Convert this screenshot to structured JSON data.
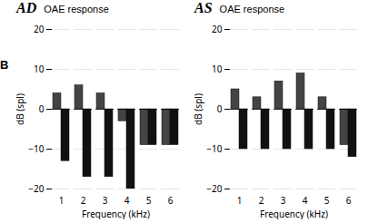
{
  "chart_data": [
    {
      "type": "bar",
      "title": "AD",
      "subtitle": "OAE response",
      "x_label": "Frequency (kHz)",
      "y_label": "dB (spl)",
      "annotations": [
        "B"
      ],
      "categories": [
        "1",
        "2",
        "3",
        "4",
        "5",
        "6"
      ],
      "series": [
        {
          "color": "#444444",
          "values": [
            4,
            6,
            4,
            -3,
            -9,
            -9
          ]
        },
        {
          "color": "#111111",
          "values": [
            -13,
            -17,
            -17,
            -20,
            -9,
            -9
          ]
        }
      ],
      "ylim": [
        -20,
        20
      ],
      "yticks": [
        -20,
        -10,
        0,
        10,
        20
      ],
      "grid": true
    },
    {
      "type": "bar",
      "title": "AS",
      "subtitle": "OAE response",
      "x_label": "Frequency (kHz)",
      "y_label": "dB (spl)",
      "categories": [
        "1",
        "2",
        "3",
        "4",
        "5",
        "6"
      ],
      "series": [
        {
          "color": "#444444",
          "values": [
            5,
            3,
            7,
            9,
            3,
            -9
          ]
        },
        {
          "color": "#111111",
          "values": [
            -10,
            -10,
            -10,
            -10,
            -10,
            -12
          ]
        }
      ],
      "ylim": [
        -20,
        20
      ],
      "yticks": [
        -20,
        -10,
        0,
        10,
        20
      ],
      "grid": true
    }
  ]
}
